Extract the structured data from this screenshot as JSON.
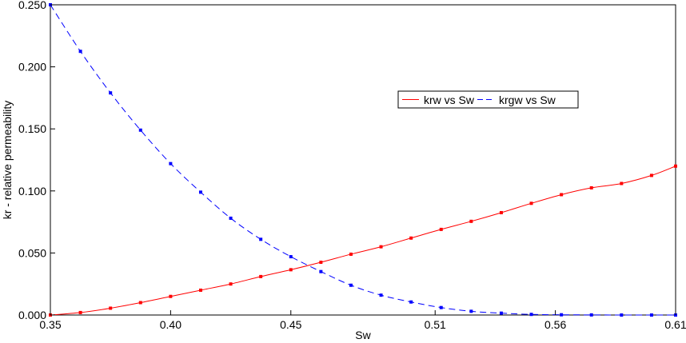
{
  "chart_data": {
    "type": "line",
    "xlabel": "Sw",
    "ylabel": "kr - relative permeability",
    "xlim": [
      0.35,
      0.61
    ],
    "ylim": [
      0,
      0.25
    ],
    "x_ticks": [
      "0.35",
      "0.40",
      "0.45",
      "0.51",
      "0.56",
      "0.61"
    ],
    "y_ticks": [
      "0.000",
      "0.050",
      "0.100",
      "0.150",
      "0.200",
      "0.250"
    ],
    "legend_position": "upper-right",
    "series": [
      {
        "name": "krw vs Sw",
        "color": "#ff0000",
        "line_style": "solid",
        "x": [
          0.35,
          0.3625,
          0.375,
          0.3875,
          0.4,
          0.4125,
          0.425,
          0.4375,
          0.45,
          0.4625,
          0.475,
          0.4875,
          0.5,
          0.5125,
          0.525,
          0.5375,
          0.55,
          0.5625,
          0.575,
          0.5875,
          0.6,
          0.61
        ],
        "y": [
          0.0,
          0.002,
          0.0055,
          0.01,
          0.015,
          0.02,
          0.025,
          0.031,
          0.0365,
          0.0425,
          0.049,
          0.055,
          0.062,
          0.069,
          0.0755,
          0.0825,
          0.09,
          0.097,
          0.1025,
          0.106,
          0.1125,
          0.12
        ]
      },
      {
        "name": "krgw vs Sw",
        "color": "#0000ff",
        "line_style": "dashed",
        "x": [
          0.35,
          0.3625,
          0.375,
          0.3875,
          0.4,
          0.4125,
          0.425,
          0.4375,
          0.45,
          0.4625,
          0.475,
          0.4875,
          0.5,
          0.5125,
          0.525,
          0.5375,
          0.55,
          0.5625,
          0.575,
          0.5875,
          0.6,
          0.61
        ],
        "y": [
          0.25,
          0.2125,
          0.179,
          0.149,
          0.122,
          0.099,
          0.078,
          0.061,
          0.047,
          0.035,
          0.024,
          0.016,
          0.0105,
          0.006,
          0.003,
          0.0015,
          0.0005,
          0.0002,
          0.0001,
          0.0,
          0.0,
          0.0
        ]
      }
    ]
  }
}
